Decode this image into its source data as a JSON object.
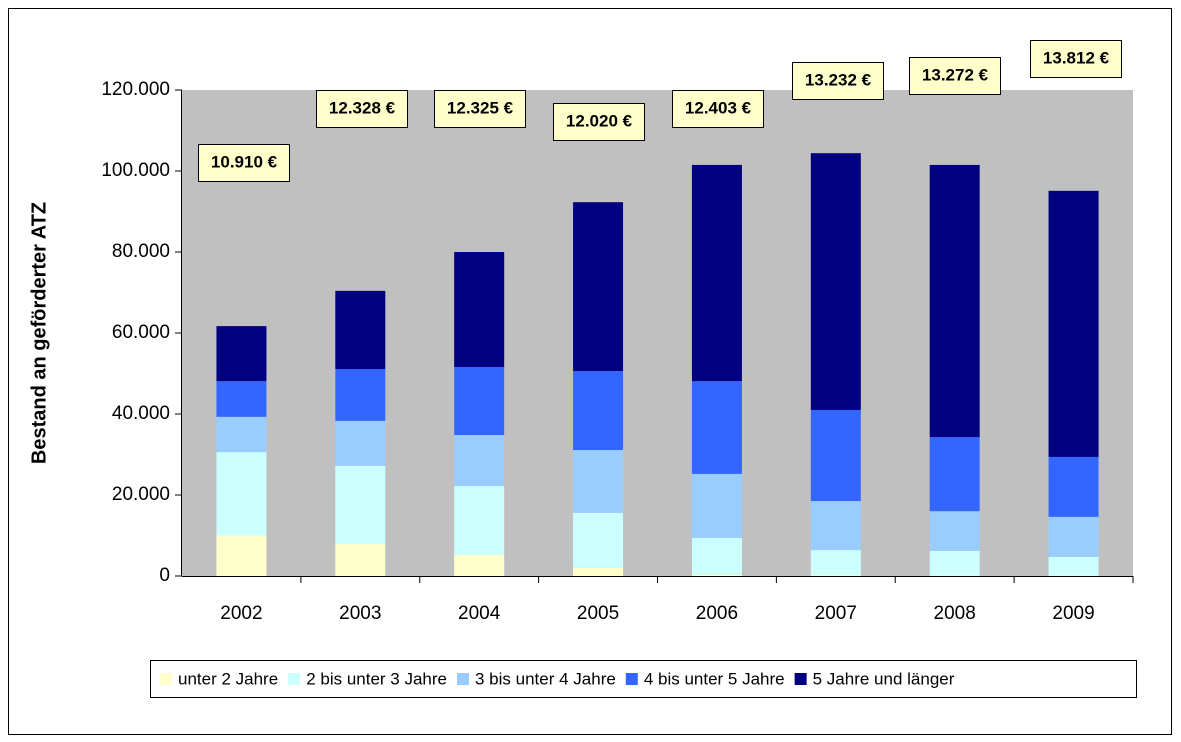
{
  "chart_data": {
    "type": "stacked-bar",
    "y_label": "Bestand an geförderter ATZ",
    "categories": [
      "2002",
      "2003",
      "2004",
      "2005",
      "2006",
      "2007",
      "2008",
      "2009"
    ],
    "series": [
      {
        "name": "unter 2 Jahre",
        "color": "#ffffcc",
        "values": [
          10000,
          7900,
          5200,
          2000,
          300,
          200,
          100,
          100
        ]
      },
      {
        "name": "2 bis unter 3 Jahre",
        "color": "#ccffff",
        "values": [
          20600,
          19300,
          17000,
          13600,
          9100,
          6200,
          6100,
          4600
        ]
      },
      {
        "name": "3 bis unter 4 Jahre",
        "color": "#99ccff",
        "values": [
          8700,
          11100,
          12600,
          15500,
          15800,
          12100,
          9800,
          9900
        ]
      },
      {
        "name": "4 bis unter 5 Jahre",
        "color": "#3366ff",
        "values": [
          8800,
          12800,
          16800,
          19500,
          22900,
          22500,
          18300,
          14800
        ]
      },
      {
        "name": "5 Jahre und länger",
        "color": "#000080",
        "values": [
          13600,
          19300,
          28400,
          41700,
          53400,
          63400,
          67200,
          65700
        ]
      }
    ],
    "annotations": [
      "10.910 €",
      "12.328 €",
      "12.325 €",
      "12.020 €",
      "12.403 €",
      "13.232 €",
      "13.272 €",
      "13.812 €"
    ],
    "ylim": [
      0,
      120000
    ],
    "yticks": [
      {
        "value": 0,
        "label": "0"
      },
      {
        "value": 20000,
        "label": "20.000"
      },
      {
        "value": 40000,
        "label": "40.000"
      },
      {
        "value": 60000,
        "label": "60.000"
      },
      {
        "value": 80000,
        "label": "80.000"
      },
      {
        "value": 100000,
        "label": "100.000"
      },
      {
        "value": 120000,
        "label": "120.000"
      }
    ],
    "legend": "bottom"
  }
}
